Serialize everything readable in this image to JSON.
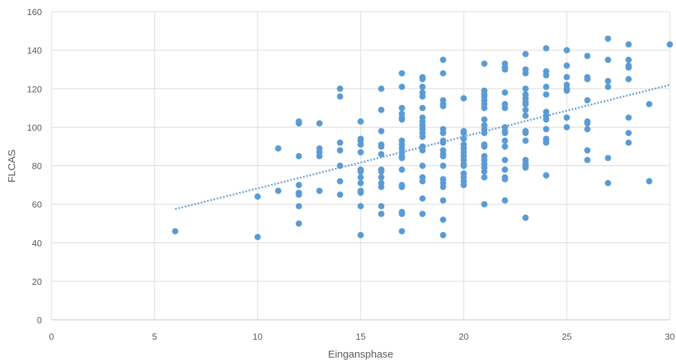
{
  "chart_data": {
    "type": "scatter",
    "title": "",
    "xlabel": "Eingansphase",
    "ylabel": "FLCAS",
    "xlim": [
      0,
      30
    ],
    "ylim": [
      0,
      160
    ],
    "x_ticks": [
      0,
      5,
      10,
      15,
      20,
      25,
      30
    ],
    "y_ticks": [
      0,
      20,
      40,
      60,
      80,
      100,
      120,
      140,
      160
    ],
    "grid": true,
    "legend": "none",
    "point_color": "#5b9bd5",
    "trendline": {
      "type": "linear",
      "style": "dotted",
      "color": "#5b9bd5",
      "x": [
        6,
        30
      ],
      "y": [
        57.5,
        122
      ]
    },
    "points": [
      [
        6,
        46
      ],
      [
        10,
        64
      ],
      [
        10,
        43
      ],
      [
        11,
        89
      ],
      [
        11,
        67
      ],
      [
        12,
        103
      ],
      [
        12,
        102
      ],
      [
        12,
        85
      ],
      [
        12,
        70
      ],
      [
        12,
        66
      ],
      [
        12,
        65
      ],
      [
        12,
        59
      ],
      [
        12,
        50
      ],
      [
        13,
        102
      ],
      [
        13,
        89
      ],
      [
        13,
        87
      ],
      [
        13,
        85
      ],
      [
        13,
        67
      ],
      [
        14,
        120
      ],
      [
        14,
        116
      ],
      [
        14,
        92
      ],
      [
        14,
        88
      ],
      [
        14,
        80
      ],
      [
        14,
        72
      ],
      [
        14,
        65
      ],
      [
        15,
        103
      ],
      [
        15,
        94
      ],
      [
        15,
        93
      ],
      [
        15,
        91
      ],
      [
        15,
        87
      ],
      [
        15,
        78
      ],
      [
        15,
        77
      ],
      [
        15,
        74
      ],
      [
        15,
        71
      ],
      [
        15,
        67
      ],
      [
        15,
        66
      ],
      [
        15,
        59
      ],
      [
        15,
        44
      ],
      [
        16,
        120
      ],
      [
        16,
        109
      ],
      [
        16,
        98
      ],
      [
        16,
        91
      ],
      [
        16,
        90
      ],
      [
        16,
        86
      ],
      [
        16,
        78
      ],
      [
        16,
        77
      ],
      [
        16,
        74
      ],
      [
        16,
        71
      ],
      [
        16,
        69
      ],
      [
        16,
        59
      ],
      [
        16,
        55
      ],
      [
        17,
        128
      ],
      [
        17,
        121
      ],
      [
        17,
        110
      ],
      [
        17,
        107
      ],
      [
        17,
        105
      ],
      [
        17,
        104
      ],
      [
        17,
        93
      ],
      [
        17,
        91
      ],
      [
        17,
        89
      ],
      [
        17,
        87
      ],
      [
        17,
        85
      ],
      [
        17,
        84
      ],
      [
        17,
        78
      ],
      [
        17,
        70
      ],
      [
        17,
        69
      ],
      [
        17,
        56
      ],
      [
        17,
        55
      ],
      [
        17,
        46
      ],
      [
        18,
        126
      ],
      [
        18,
        125
      ],
      [
        18,
        121
      ],
      [
        18,
        118
      ],
      [
        18,
        116
      ],
      [
        18,
        110
      ],
      [
        18,
        105
      ],
      [
        18,
        103
      ],
      [
        18,
        101
      ],
      [
        18,
        99
      ],
      [
        18,
        97
      ],
      [
        18,
        95
      ],
      [
        18,
        90
      ],
      [
        18,
        88
      ],
      [
        18,
        80
      ],
      [
        18,
        74
      ],
      [
        18,
        72
      ],
      [
        18,
        63
      ],
      [
        18,
        55
      ],
      [
        19,
        135
      ],
      [
        19,
        128
      ],
      [
        19,
        114
      ],
      [
        19,
        112
      ],
      [
        19,
        111
      ],
      [
        19,
        99
      ],
      [
        19,
        97
      ],
      [
        19,
        93
      ],
      [
        19,
        92
      ],
      [
        19,
        88
      ],
      [
        19,
        86
      ],
      [
        19,
        85
      ],
      [
        19,
        80
      ],
      [
        19,
        73
      ],
      [
        19,
        71
      ],
      [
        19,
        69
      ],
      [
        19,
        62
      ],
      [
        19,
        52
      ],
      [
        19,
        44
      ],
      [
        20,
        115
      ],
      [
        20,
        98
      ],
      [
        20,
        97
      ],
      [
        20,
        94
      ],
      [
        20,
        91
      ],
      [
        20,
        89
      ],
      [
        20,
        87
      ],
      [
        20,
        85
      ],
      [
        20,
        83
      ],
      [
        20,
        81
      ],
      [
        20,
        80
      ],
      [
        20,
        76
      ],
      [
        20,
        74
      ],
      [
        20,
        72
      ],
      [
        20,
        70
      ],
      [
        21,
        133
      ],
      [
        21,
        119
      ],
      [
        21,
        117
      ],
      [
        21,
        116
      ],
      [
        21,
        114
      ],
      [
        21,
        112
      ],
      [
        21,
        110
      ],
      [
        21,
        104
      ],
      [
        21,
        101
      ],
      [
        21,
        99
      ],
      [
        21,
        97
      ],
      [
        21,
        91
      ],
      [
        21,
        90
      ],
      [
        21,
        85
      ],
      [
        21,
        83
      ],
      [
        21,
        81
      ],
      [
        21,
        79
      ],
      [
        21,
        77
      ],
      [
        21,
        74
      ],
      [
        21,
        60
      ],
      [
        22,
        133
      ],
      [
        22,
        131
      ],
      [
        22,
        130
      ],
      [
        22,
        118
      ],
      [
        22,
        112
      ],
      [
        22,
        110
      ],
      [
        22,
        100
      ],
      [
        22,
        98
      ],
      [
        22,
        97
      ],
      [
        22,
        93
      ],
      [
        22,
        90
      ],
      [
        22,
        83
      ],
      [
        22,
        78
      ],
      [
        22,
        74
      ],
      [
        22,
        73
      ],
      [
        22,
        62
      ],
      [
        23,
        138
      ],
      [
        23,
        130
      ],
      [
        23,
        128
      ],
      [
        23,
        120
      ],
      [
        23,
        117
      ],
      [
        23,
        115
      ],
      [
        23,
        113
      ],
      [
        23,
        112
      ],
      [
        23,
        109
      ],
      [
        23,
        106
      ],
      [
        23,
        98
      ],
      [
        23,
        97
      ],
      [
        23,
        93
      ],
      [
        23,
        83
      ],
      [
        23,
        81
      ],
      [
        23,
        80
      ],
      [
        23,
        79
      ],
      [
        23,
        53
      ],
      [
        24,
        141
      ],
      [
        24,
        129
      ],
      [
        24,
        127
      ],
      [
        24,
        121
      ],
      [
        24,
        117
      ],
      [
        24,
        108
      ],
      [
        24,
        106
      ],
      [
        24,
        104
      ],
      [
        24,
        99
      ],
      [
        24,
        94
      ],
      [
        24,
        93
      ],
      [
        24,
        92
      ],
      [
        24,
        75
      ],
      [
        25,
        140
      ],
      [
        25,
        132
      ],
      [
        25,
        126
      ],
      [
        25,
        122
      ],
      [
        25,
        120
      ],
      [
        25,
        119
      ],
      [
        25,
        105
      ],
      [
        25,
        100
      ],
      [
        26,
        137
      ],
      [
        26,
        126
      ],
      [
        26,
        125
      ],
      [
        26,
        114
      ],
      [
        26,
        103
      ],
      [
        26,
        102
      ],
      [
        26,
        99
      ],
      [
        26,
        88
      ],
      [
        26,
        83
      ],
      [
        27,
        146
      ],
      [
        27,
        135
      ],
      [
        27,
        124
      ],
      [
        27,
        121
      ],
      [
        27,
        84
      ],
      [
        27,
        71
      ],
      [
        28,
        143
      ],
      [
        28,
        135
      ],
      [
        28,
        132
      ],
      [
        28,
        131
      ],
      [
        28,
        125
      ],
      [
        28,
        105
      ],
      [
        28,
        97
      ],
      [
        28,
        92
      ],
      [
        29,
        112
      ],
      [
        29,
        72
      ],
      [
        30,
        143
      ]
    ]
  }
}
